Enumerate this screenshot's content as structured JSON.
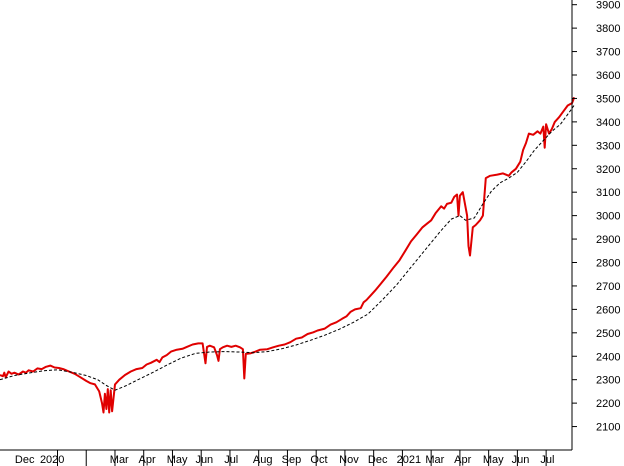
{
  "chart_data": {
    "type": "line",
    "title": "",
    "xlabel": "",
    "ylabel": "",
    "ylim": [
      2000,
      3920
    ],
    "y_ticks": [
      2100,
      2200,
      2300,
      2400,
      2500,
      2600,
      2700,
      2800,
      2900,
      3000,
      3100,
      3200,
      3300,
      3400,
      3500,
      3600,
      3700,
      3800,
      3900
    ],
    "x_tick_labels": [
      "Dec",
      "2020",
      "Mar",
      "Apr",
      "May",
      "Jun",
      "Jul",
      "Aug",
      "Sep",
      "Oct",
      "Nov",
      "Dec",
      "2021",
      "Mar",
      "Apr",
      "May",
      "Jun",
      "Jul"
    ],
    "x_label_time": [
      -0.55,
      0.32,
      2.75,
      3.75,
      4.73,
      5.73,
      6.73,
      7.73,
      8.73,
      9.73,
      10.73,
      11.73,
      12.73,
      13.73,
      14.73,
      15.73,
      16.73,
      17.73
    ],
    "x_month_starts": [
      1,
      2,
      3,
      4,
      5,
      6,
      7,
      8,
      9,
      10,
      11,
      12,
      13,
      14,
      15,
      16,
      17,
      18
    ],
    "x_range": [
      -1,
      18.9
    ],
    "grid": false,
    "legend": "none",
    "colors": {
      "price": "#e00000",
      "average": "#000000",
      "axis": "#000000"
    },
    "series": [
      {
        "style": "solid",
        "color": "#e00000",
        "points": [
          [
            -1.0,
            2320
          ],
          [
            -0.9,
            2315
          ],
          [
            -0.85,
            2330
          ],
          [
            -0.8,
            2310
          ],
          [
            -0.7,
            2335
          ],
          [
            -0.6,
            2325
          ],
          [
            -0.5,
            2330
          ],
          [
            -0.35,
            2322
          ],
          [
            -0.2,
            2335
          ],
          [
            -0.1,
            2330
          ],
          [
            0.0,
            2340
          ],
          [
            0.15,
            2335
          ],
          [
            0.3,
            2348
          ],
          [
            0.45,
            2345
          ],
          [
            0.6,
            2355
          ],
          [
            0.75,
            2360
          ],
          [
            0.9,
            2352
          ],
          [
            1.05,
            2350
          ],
          [
            1.2,
            2345
          ],
          [
            1.4,
            2335
          ],
          [
            1.6,
            2325
          ],
          [
            1.8,
            2310
          ],
          [
            2.0,
            2295
          ],
          [
            2.15,
            2285
          ],
          [
            2.3,
            2280
          ],
          [
            2.45,
            2250
          ],
          [
            2.55,
            2200
          ],
          [
            2.6,
            2160
          ],
          [
            2.65,
            2240
          ],
          [
            2.7,
            2175
          ],
          [
            2.75,
            2260
          ],
          [
            2.8,
            2160
          ],
          [
            2.85,
            2255
          ],
          [
            2.9,
            2165
          ],
          [
            3.0,
            2280
          ],
          [
            3.15,
            2300
          ],
          [
            3.35,
            2320
          ],
          [
            3.55,
            2335
          ],
          [
            3.75,
            2345
          ],
          [
            3.95,
            2350
          ],
          [
            4.1,
            2365
          ],
          [
            4.25,
            2372
          ],
          [
            4.45,
            2385
          ],
          [
            4.55,
            2375
          ],
          [
            4.65,
            2395
          ],
          [
            4.8,
            2405
          ],
          [
            4.95,
            2420
          ],
          [
            5.15,
            2428
          ],
          [
            5.35,
            2432
          ],
          [
            5.5,
            2440
          ],
          [
            5.7,
            2450
          ],
          [
            5.9,
            2455
          ],
          [
            6.05,
            2455
          ],
          [
            6.15,
            2370
          ],
          [
            6.2,
            2440
          ],
          [
            6.3,
            2445
          ],
          [
            6.45,
            2438
          ],
          [
            6.55,
            2405
          ],
          [
            6.6,
            2380
          ],
          [
            6.65,
            2430
          ],
          [
            6.75,
            2438
          ],
          [
            6.9,
            2445
          ],
          [
            7.05,
            2440
          ],
          [
            7.2,
            2445
          ],
          [
            7.35,
            2438
          ],
          [
            7.45,
            2430
          ],
          [
            7.5,
            2305
          ],
          [
            7.55,
            2410
          ],
          [
            7.7,
            2412
          ],
          [
            7.85,
            2418
          ],
          [
            8.05,
            2428
          ],
          [
            8.3,
            2430
          ],
          [
            8.5,
            2438
          ],
          [
            8.7,
            2445
          ],
          [
            8.9,
            2450
          ],
          [
            9.1,
            2460
          ],
          [
            9.3,
            2475
          ],
          [
            9.5,
            2480
          ],
          [
            9.7,
            2495
          ],
          [
            9.9,
            2502
          ],
          [
            10.05,
            2510
          ],
          [
            10.3,
            2518
          ],
          [
            10.5,
            2535
          ],
          [
            10.7,
            2545
          ],
          [
            10.9,
            2560
          ],
          [
            11.05,
            2570
          ],
          [
            11.2,
            2590
          ],
          [
            11.35,
            2600
          ],
          [
            11.55,
            2605
          ],
          [
            11.65,
            2630
          ],
          [
            11.75,
            2640
          ],
          [
            11.9,
            2660
          ],
          [
            12.05,
            2680
          ],
          [
            12.25,
            2710
          ],
          [
            12.45,
            2740
          ],
          [
            12.7,
            2780
          ],
          [
            12.9,
            2810
          ],
          [
            13.1,
            2850
          ],
          [
            13.3,
            2890
          ],
          [
            13.5,
            2920
          ],
          [
            13.7,
            2950
          ],
          [
            13.85,
            2965
          ],
          [
            14.0,
            2980
          ],
          [
            14.15,
            3010
          ],
          [
            14.35,
            3040
          ],
          [
            14.45,
            3030
          ],
          [
            14.55,
            3050
          ],
          [
            14.7,
            3055
          ],
          [
            14.8,
            3080
          ],
          [
            14.9,
            3090
          ],
          [
            14.95,
            3000
          ],
          [
            15.0,
            3085
          ],
          [
            15.1,
            3100
          ],
          [
            15.25,
            3000
          ],
          [
            15.3,
            2870
          ],
          [
            15.35,
            2830
          ],
          [
            15.45,
            2950
          ],
          [
            15.55,
            2960
          ],
          [
            15.7,
            2980
          ],
          [
            15.8,
            3000
          ],
          [
            15.9,
            3160
          ],
          [
            16.05,
            3170
          ],
          [
            16.3,
            3175
          ],
          [
            16.5,
            3180
          ],
          [
            16.7,
            3170
          ],
          [
            16.8,
            3185
          ],
          [
            16.95,
            3200
          ],
          [
            17.1,
            3230
          ],
          [
            17.2,
            3280
          ],
          [
            17.3,
            3310
          ],
          [
            17.4,
            3350
          ],
          [
            17.55,
            3345
          ],
          [
            17.7,
            3360
          ],
          [
            17.8,
            3350
          ],
          [
            17.9,
            3380
          ],
          [
            17.95,
            3290
          ],
          [
            18.0,
            3390
          ],
          [
            18.1,
            3350
          ],
          [
            18.2,
            3370
          ],
          [
            18.3,
            3400
          ],
          [
            18.45,
            3420
          ],
          [
            18.6,
            3445
          ],
          [
            18.75,
            3470
          ],
          [
            18.9,
            3480
          ],
          [
            18.95,
            3495
          ],
          [
            18.97,
            3505
          ]
        ]
      },
      {
        "style": "dashed",
        "color": "#000000",
        "points": [
          [
            -1.0,
            2300
          ],
          [
            -0.5,
            2318
          ],
          [
            0.0,
            2328
          ],
          [
            0.5,
            2338
          ],
          [
            1.0,
            2342
          ],
          [
            1.5,
            2332
          ],
          [
            2.0,
            2318
          ],
          [
            2.4,
            2300
          ],
          [
            2.7,
            2275
          ],
          [
            3.0,
            2255
          ],
          [
            3.4,
            2275
          ],
          [
            3.8,
            2300
          ],
          [
            4.3,
            2330
          ],
          [
            4.8,
            2362
          ],
          [
            5.3,
            2392
          ],
          [
            5.8,
            2412
          ],
          [
            6.3,
            2418
          ],
          [
            6.8,
            2420
          ],
          [
            7.3,
            2418
          ],
          [
            7.8,
            2415
          ],
          [
            8.3,
            2420
          ],
          [
            8.8,
            2432
          ],
          [
            9.3,
            2448
          ],
          [
            9.8,
            2468
          ],
          [
            10.3,
            2490
          ],
          [
            10.8,
            2515
          ],
          [
            11.3,
            2545
          ],
          [
            11.8,
            2580
          ],
          [
            12.3,
            2640
          ],
          [
            12.8,
            2705
          ],
          [
            13.3,
            2780
          ],
          [
            13.8,
            2855
          ],
          [
            14.3,
            2930
          ],
          [
            14.7,
            2985
          ],
          [
            15.0,
            3000
          ],
          [
            15.2,
            2980
          ],
          [
            15.5,
            2990
          ],
          [
            15.8,
            3050
          ],
          [
            16.1,
            3105
          ],
          [
            16.4,
            3140
          ],
          [
            16.7,
            3160
          ],
          [
            17.0,
            3185
          ],
          [
            17.3,
            3230
          ],
          [
            17.6,
            3280
          ],
          [
            17.9,
            3320
          ],
          [
            18.2,
            3360
          ],
          [
            18.5,
            3390
          ],
          [
            18.8,
            3440
          ],
          [
            18.97,
            3470
          ]
        ]
      }
    ]
  }
}
